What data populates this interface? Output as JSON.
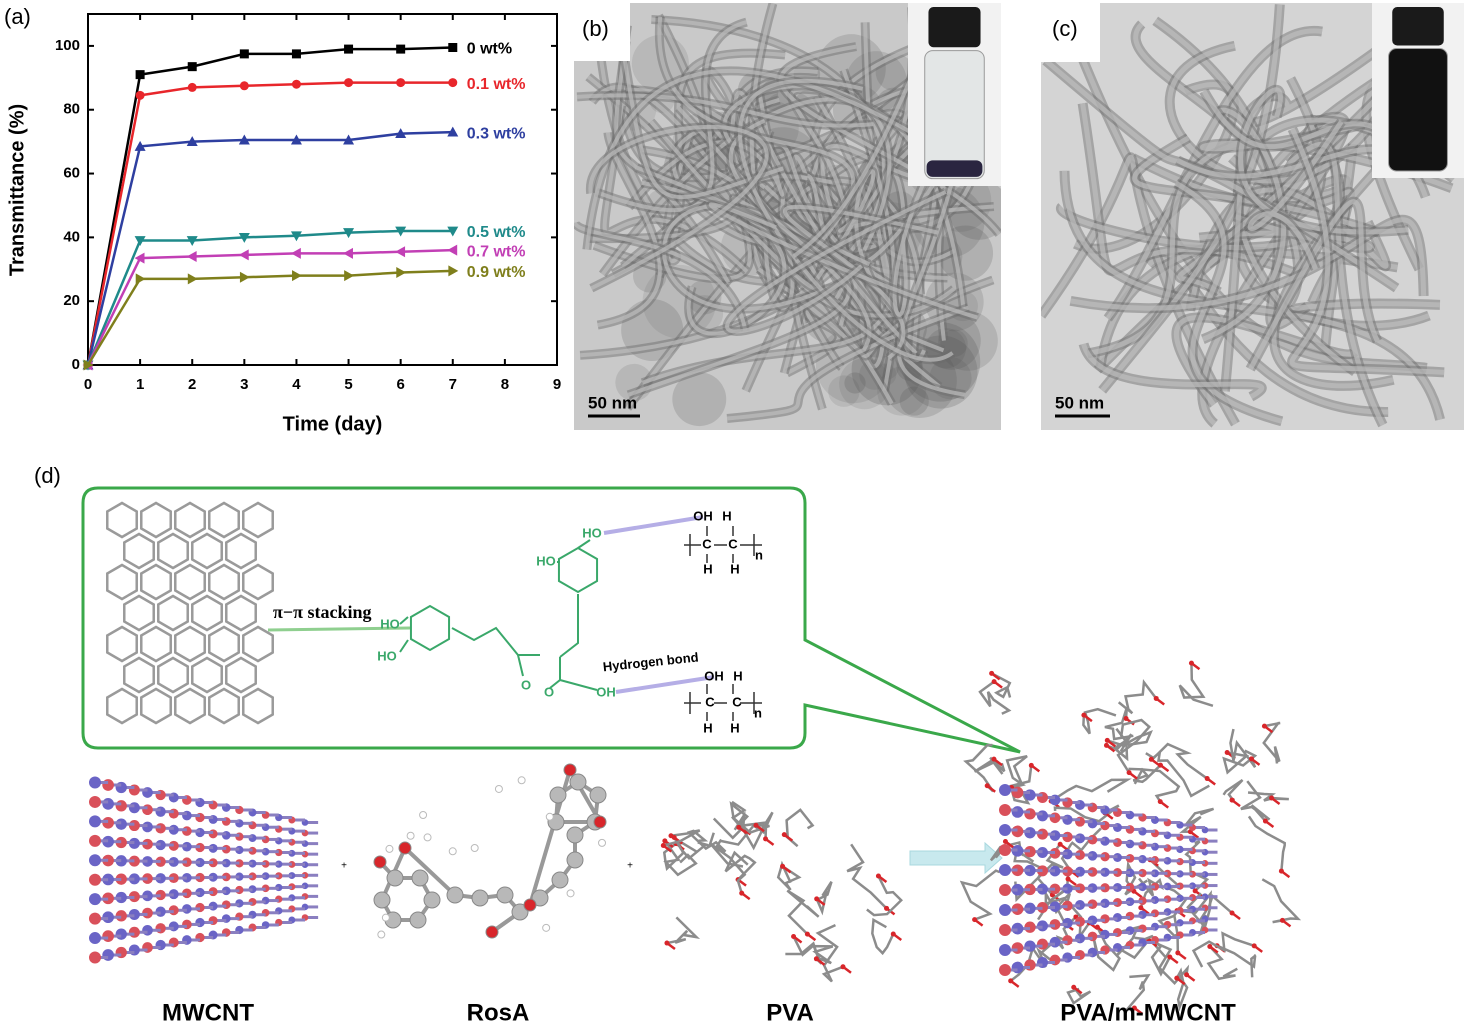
{
  "panel_labels": [
    "(a)",
    "(b)",
    "(c)",
    "(d)"
  ],
  "chart_data": {
    "type": "line",
    "x_label": "Time (day)",
    "y_label": "Transmittance (%)",
    "xlim": [
      0,
      9
    ],
    "xticks": [
      0,
      1,
      2,
      3,
      4,
      5,
      6,
      7,
      8,
      9
    ],
    "ylim": [
      0,
      110
    ],
    "yticks": [
      0,
      20,
      40,
      60,
      80,
      100
    ],
    "grid": false,
    "x": [
      0,
      1,
      2,
      3,
      4,
      5,
      6,
      7
    ],
    "series": [
      {
        "name": "0 wt%",
        "color": "#000000",
        "marker": "square",
        "values": [
          0,
          91,
          93.5,
          97.5,
          97.5,
          99,
          99,
          99.5
        ]
      },
      {
        "name": "0.1 wt%",
        "color": "#e8262b",
        "marker": "circle",
        "values": [
          0,
          84.5,
          87,
          87.5,
          88,
          88.5,
          88.5,
          88.5
        ]
      },
      {
        "name": "0.3 wt%",
        "color": "#2e3fa0",
        "marker": "triangle-up",
        "values": [
          0,
          68.5,
          70,
          70.5,
          70.5,
          70.5,
          72.5,
          73
        ]
      },
      {
        "name": "0.5 wt%",
        "color": "#1f8a8a",
        "marker": "triangle-down",
        "values": [
          0,
          39,
          39,
          40,
          40.5,
          41.5,
          42,
          42
        ]
      },
      {
        "name": "0.7 wt%",
        "color": "#c23fb5",
        "marker": "triangle-left",
        "values": [
          0,
          33.5,
          34,
          34.5,
          35,
          35,
          35.5,
          36
        ]
      },
      {
        "name": "0.9 wt%",
        "color": "#7f7f1c",
        "marker": "triangle-right",
        "values": [
          0,
          27,
          27,
          27.5,
          28,
          28,
          29,
          29.5
        ]
      }
    ]
  },
  "tem_images": [
    {
      "scale_bar": "50 nm"
    },
    {
      "scale_bar": "50 nm"
    }
  ],
  "diagram": {
    "interactions": [
      "π−π stacking",
      "Hydrogen bond"
    ],
    "atoms": [
      "HO",
      "HO",
      "HO",
      "HO",
      "O",
      "O",
      "OH",
      "OH",
      "H",
      "C",
      "C",
      "H",
      "H",
      "n",
      "OH",
      "H",
      "C",
      "C",
      "H",
      "H",
      "n"
    ],
    "operators": [
      "+",
      "+"
    ],
    "molecules": [
      "MWCNT",
      "RosA",
      "PVA",
      "PVA/m-MWCNT"
    ]
  }
}
